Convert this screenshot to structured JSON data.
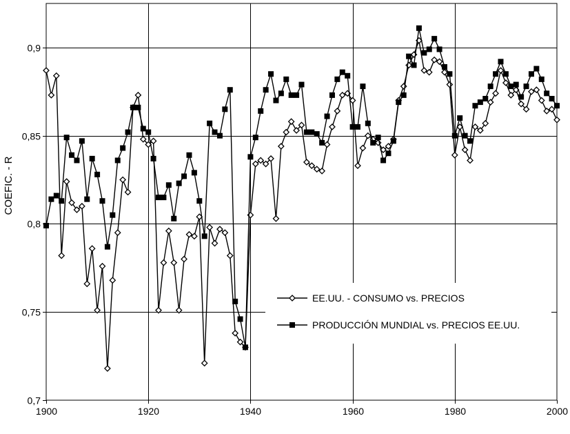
{
  "chart_data": {
    "type": "line",
    "title": "",
    "xlabel": "",
    "ylabel": "COEFIC. - R",
    "xlim": [
      1900,
      2000
    ],
    "ylim": [
      0.7,
      0.925
    ],
    "grid": true,
    "legend_position": "center-right",
    "x_ticks": [
      {
        "value": 1900,
        "label": "1900"
      },
      {
        "value": 1920,
        "label": "1920"
      },
      {
        "value": 1940,
        "label": "1940"
      },
      {
        "value": 1960,
        "label": "1960"
      },
      {
        "value": 1980,
        "label": "1980"
      },
      {
        "value": 2000,
        "label": "2000"
      }
    ],
    "y_ticks": [
      {
        "value": 0.7,
        "label": "0,7"
      },
      {
        "value": 0.75,
        "label": "0,75"
      },
      {
        "value": 0.8,
        "label": "0,8"
      },
      {
        "value": 0.85,
        "label": "0,85"
      },
      {
        "value": 0.9,
        "label": "0,9"
      }
    ],
    "x": [
      1900,
      1901,
      1902,
      1903,
      1904,
      1905,
      1906,
      1907,
      1908,
      1909,
      1910,
      1911,
      1912,
      1913,
      1914,
      1915,
      1916,
      1917,
      1918,
      1919,
      1920,
      1921,
      1922,
      1923,
      1924,
      1925,
      1926,
      1927,
      1928,
      1929,
      1930,
      1931,
      1932,
      1933,
      1934,
      1935,
      1936,
      1937,
      1938,
      1939,
      1940,
      1941,
      1942,
      1943,
      1944,
      1945,
      1946,
      1947,
      1948,
      1949,
      1950,
      1951,
      1952,
      1953,
      1954,
      1955,
      1956,
      1957,
      1958,
      1959,
      1960,
      1961,
      1962,
      1963,
      1964,
      1965,
      1966,
      1967,
      1968,
      1969,
      1970,
      1971,
      1972,
      1973,
      1974,
      1975,
      1976,
      1977,
      1978,
      1979,
      1980,
      1981,
      1982,
      1983,
      1984,
      1985,
      1986,
      1987,
      1988,
      1989,
      1990,
      1991,
      1992,
      1993,
      1994,
      1995,
      1996,
      1997,
      1998,
      1999,
      2000
    ],
    "series": [
      {
        "name": "EE.UU. - CONSUMO vs. PRECIOS",
        "marker": "diamond-open",
        "values": [
          0.887,
          0.873,
          0.884,
          0.782,
          0.824,
          0.812,
          0.808,
          0.81,
          0.766,
          0.786,
          0.751,
          0.776,
          0.718,
          0.768,
          0.795,
          0.825,
          0.818,
          0.866,
          0.873,
          0.848,
          0.845,
          0.847,
          0.751,
          0.778,
          0.796,
          0.778,
          0.751,
          0.78,
          0.794,
          0.793,
          0.804,
          0.721,
          0.798,
          0.789,
          0.797,
          0.795,
          0.782,
          0.738,
          0.733,
          0.73,
          0.805,
          0.834,
          0.836,
          0.834,
          0.837,
          0.803,
          0.844,
          0.852,
          0.858,
          0.853,
          0.856,
          0.835,
          0.833,
          0.831,
          0.83,
          0.845,
          0.855,
          0.864,
          0.873,
          0.874,
          0.87,
          0.833,
          0.843,
          0.85,
          0.848,
          0.846,
          0.842,
          0.844,
          0.848,
          0.87,
          0.878,
          0.89,
          0.896,
          0.904,
          0.887,
          0.886,
          0.893,
          0.892,
          0.886,
          0.879,
          0.839,
          0.855,
          0.842,
          0.836,
          0.855,
          0.853,
          0.857,
          0.869,
          0.874,
          0.887,
          0.88,
          0.873,
          0.876,
          0.868,
          0.865,
          0.875,
          0.876,
          0.87,
          0.864,
          0.865,
          0.859
        ]
      },
      {
        "name": "PRODUCCIÓN MUNDIAL vs. PRECIOS EE.UU.",
        "marker": "square-filled",
        "values": [
          0.799,
          0.814,
          0.816,
          0.813,
          0.849,
          0.839,
          0.836,
          0.847,
          0.814,
          0.837,
          0.828,
          0.813,
          0.787,
          0.805,
          0.836,
          0.843,
          0.852,
          0.866,
          0.866,
          0.854,
          0.852,
          0.837,
          0.815,
          0.815,
          0.822,
          0.803,
          0.823,
          0.827,
          0.839,
          0.829,
          0.813,
          0.793,
          0.857,
          0.852,
          0.85,
          0.865,
          0.876,
          0.756,
          0.746,
          0.73,
          0.838,
          0.849,
          0.864,
          0.876,
          0.885,
          0.87,
          0.874,
          0.882,
          0.873,
          0.873,
          0.879,
          0.852,
          0.852,
          0.851,
          0.846,
          0.861,
          0.873,
          0.882,
          0.886,
          0.884,
          0.855,
          0.855,
          0.878,
          0.857,
          0.846,
          0.849,
          0.836,
          0.84,
          0.847,
          0.869,
          0.873,
          0.895,
          0.89,
          0.911,
          0.897,
          0.899,
          0.905,
          0.899,
          0.889,
          0.885,
          0.85,
          0.86,
          0.85,
          0.847,
          0.867,
          0.869,
          0.871,
          0.878,
          0.885,
          0.892,
          0.885,
          0.878,
          0.879,
          0.872,
          0.878,
          0.885,
          0.888,
          0.882,
          0.874,
          0.871,
          0.867
        ]
      }
    ]
  }
}
